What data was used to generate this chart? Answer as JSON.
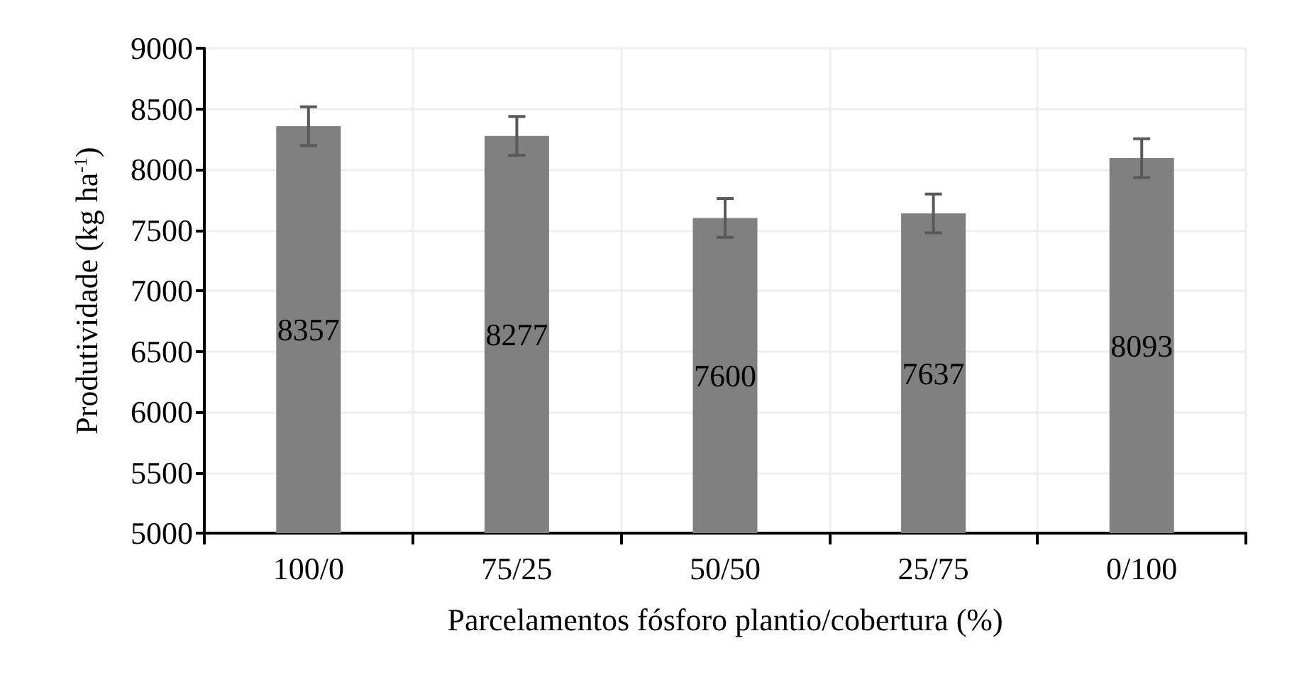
{
  "chart_data": {
    "type": "bar",
    "xlabel": "Parcelamentos fósforo plantio/cobertura (%)",
    "ylabel": "Produtividade (kg ha$^{-1}$)",
    "categories": [
      "100/0",
      "75/25",
      "50/50",
      "25/75",
      "0/100"
    ],
    "values": [
      8357,
      8277,
      7600,
      7637,
      8093
    ],
    "errors": [
      160,
      160,
      160,
      160,
      160
    ],
    "color": "#808080",
    "data_labels": true,
    "ylim": [
      5000,
      9000
    ],
    "yticks": [
      5000,
      5500,
      6000,
      6500,
      7000,
      7500,
      8000,
      8500,
      9000
    ],
    "grid": true
  }
}
